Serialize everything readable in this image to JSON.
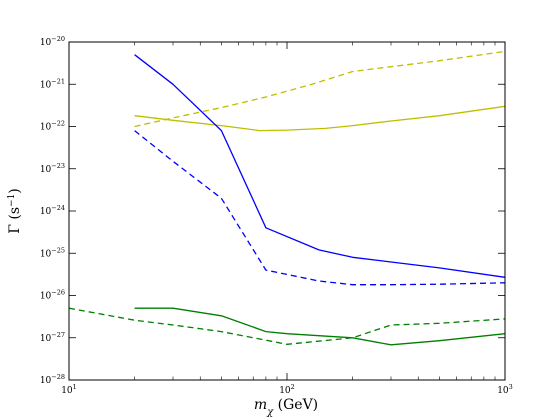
{
  "chart_data": {
    "type": "line",
    "title": "",
    "xlabel": {
      "symbol": "m",
      "sub": "χ",
      "unit": " (GeV)"
    },
    "ylabel": {
      "base": "Γ (s",
      "sup": "−1",
      "close": ")"
    },
    "xscale": "log",
    "yscale": "log",
    "xlim": [
      10,
      1000
    ],
    "ylim": [
      1e-28,
      1e-20
    ],
    "grid": false,
    "legend": "none",
    "x_ticks": [
      {
        "base": "10",
        "exp": "1"
      },
      {
        "base": "10",
        "exp": "2"
      },
      {
        "base": "10",
        "exp": "3"
      }
    ],
    "y_ticks": [
      {
        "base": "10",
        "exp": "−28"
      },
      {
        "base": "10",
        "exp": "−27"
      },
      {
        "base": "10",
        "exp": "−26"
      },
      {
        "base": "10",
        "exp": "−25"
      },
      {
        "base": "10",
        "exp": "−24"
      },
      {
        "base": "10",
        "exp": "−23"
      },
      {
        "base": "10",
        "exp": "−22"
      },
      {
        "base": "10",
        "exp": "−21"
      },
      {
        "base": "10",
        "exp": "−20"
      }
    ],
    "series": [
      {
        "color": "#bfbf00",
        "style": "dashed",
        "x": [
          20,
          30,
          50,
          80,
          130,
          200,
          300,
          500,
          1000
        ],
        "y": [
          1e-22,
          1.6e-22,
          2.8e-22,
          5e-22,
          1e-21,
          2e-21,
          2.6e-21,
          3.6e-21,
          6e-21
        ]
      },
      {
        "color": "#bfbf00",
        "style": "solid",
        "x": [
          20,
          30,
          50,
          75,
          100,
          150,
          200,
          300,
          500,
          1000
        ],
        "y": [
          1.8e-22,
          1.4e-22,
          1.05e-22,
          8e-23,
          8.2e-23,
          9e-23,
          1.05e-22,
          1.35e-22,
          1.8e-22,
          3e-22
        ]
      },
      {
        "color": "#0000ff",
        "style": "solid",
        "x": [
          20,
          30,
          50,
          80,
          140,
          200,
          300,
          500,
          1000
        ],
        "y": [
          5e-21,
          1e-21,
          8e-23,
          4e-25,
          1.2e-25,
          8e-26,
          6.2e-26,
          4.5e-26,
          2.7e-26
        ]
      },
      {
        "color": "#0000ff",
        "style": "dashed",
        "x": [
          20,
          30,
          50,
          80,
          140,
          200,
          300,
          500,
          1000
        ],
        "y": [
          8e-23,
          1.5e-23,
          2e-24,
          4e-26,
          2.2e-26,
          1.8e-26,
          1.8e-26,
          1.85e-26,
          2e-26
        ]
      },
      {
        "color": "#007f00",
        "style": "solid",
        "x": [
          20,
          30,
          50,
          80,
          100,
          200,
          300,
          500,
          1000
        ],
        "y": [
          5e-27,
          5e-27,
          3.3e-27,
          1.4e-27,
          1.25e-27,
          1e-27,
          6.8e-28,
          8.5e-28,
          1.25e-27
        ]
      },
      {
        "color": "#007f00",
        "style": "dashed",
        "x": [
          10,
          20,
          30,
          50,
          100,
          200,
          300,
          500,
          1000
        ],
        "y": [
          5e-27,
          2.6e-27,
          2e-27,
          1.4e-27,
          7e-28,
          1e-27,
          2e-27,
          2.2e-27,
          2.8e-27
        ]
      }
    ]
  }
}
